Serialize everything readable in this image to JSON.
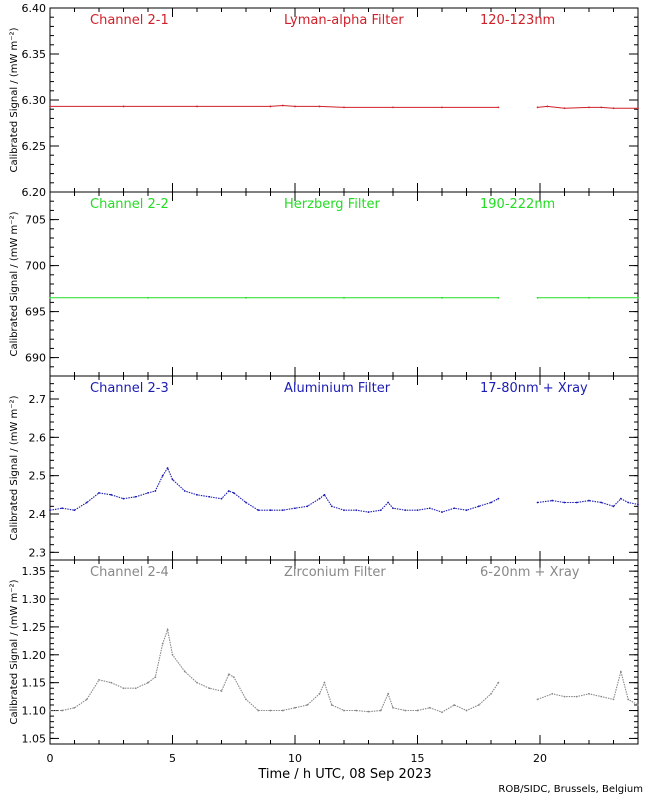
{
  "chart_data": {
    "type": "line",
    "xlabel": "Time / h UTC, 08 Sep 2023",
    "credit": "ROB/SIDC, Brussels, Belgium",
    "xlim": [
      0,
      24
    ],
    "xticks": [
      0,
      5,
      10,
      15,
      20
    ],
    "xtick_labels": [
      "0",
      "5",
      "10",
      "15",
      "20"
    ],
    "ylabel": "Calibrated Signal / (mW m⁻²)",
    "panels": [
      {
        "channel": "Channel 2-1",
        "filter": "Lyman-alpha Filter",
        "band": "120-123nm",
        "color": "#d0202a",
        "ylim": [
          6.2,
          6.4
        ],
        "yticks": [
          6.2,
          6.25,
          6.3,
          6.35,
          6.4
        ],
        "ytick_labels": [
          "6.20",
          "6.25",
          "6.30",
          "6.35",
          "6.40"
        ],
        "gap": [
          18.3,
          19.9
        ],
        "x": [
          0,
          3,
          6,
          9,
          9.5,
          10,
          11,
          12,
          14,
          16,
          18.3,
          19.9,
          20.3,
          21,
          22,
          22.5,
          23,
          24
        ],
        "y": [
          6.293,
          6.293,
          6.293,
          6.293,
          6.294,
          6.293,
          6.293,
          6.292,
          6.292,
          6.292,
          6.292,
          6.292,
          6.293,
          6.291,
          6.292,
          6.292,
          6.291,
          6.291
        ]
      },
      {
        "channel": "Channel 2-2",
        "filter": "Herzberg Filter",
        "band": "190-222nm",
        "color": "#22dd22",
        "ylim": [
          688,
          708
        ],
        "yticks": [
          690,
          695,
          700,
          705
        ],
        "ytick_labels": [
          "690",
          "695",
          "700",
          "705"
        ],
        "gap": [
          18.3,
          19.9
        ],
        "x": [
          0,
          4,
          8,
          12,
          16,
          18.3,
          19.9,
          22,
          24
        ],
        "y": [
          696.5,
          696.5,
          696.5,
          696.5,
          696.5,
          696.5,
          696.5,
          696.5,
          696.5
        ]
      },
      {
        "channel": "Channel 2-3",
        "filter": "Aluminium Filter",
        "band": "17-80nm + Xray",
        "color": "#1c1cb4",
        "ylim": [
          2.28,
          2.76
        ],
        "yticks": [
          2.3,
          2.4,
          2.5,
          2.6,
          2.7
        ],
        "ytick_labels": [
          "2.3",
          "2.4",
          "2.5",
          "2.6",
          "2.7"
        ],
        "gap": [
          18.3,
          19.9
        ],
        "x": [
          0,
          0.5,
          1,
          1.5,
          2,
          2.5,
          3,
          3.5,
          4,
          4.3,
          4.6,
          4.8,
          5,
          5.5,
          6,
          6.5,
          7,
          7.3,
          7.5,
          8,
          8.5,
          9,
          9.5,
          10,
          10.5,
          11,
          11.2,
          11.5,
          12,
          12.5,
          13,
          13.5,
          13.8,
          14,
          14.5,
          15,
          15.5,
          16,
          16.5,
          17,
          17.5,
          18,
          18.3,
          19.9,
          20.5,
          21,
          21.5,
          22,
          22.5,
          23,
          23.3,
          23.6,
          24
        ],
        "y": [
          2.41,
          2.415,
          2.41,
          2.43,
          2.455,
          2.45,
          2.44,
          2.445,
          2.455,
          2.46,
          2.5,
          2.52,
          2.49,
          2.46,
          2.45,
          2.445,
          2.44,
          2.46,
          2.455,
          2.43,
          2.41,
          2.41,
          2.41,
          2.415,
          2.42,
          2.44,
          2.45,
          2.42,
          2.41,
          2.41,
          2.405,
          2.41,
          2.43,
          2.415,
          2.41,
          2.41,
          2.415,
          2.405,
          2.415,
          2.41,
          2.42,
          2.43,
          2.44,
          2.43,
          2.435,
          2.43,
          2.43,
          2.435,
          2.43,
          2.42,
          2.44,
          2.43,
          2.425
        ]
      },
      {
        "channel": "Channel 2-4",
        "filter": "Zirconium Filter",
        "band": "6-20nm + Xray",
        "color": "#888888",
        "ylim": [
          1.04,
          1.37
        ],
        "yticks": [
          1.05,
          1.1,
          1.15,
          1.2,
          1.25,
          1.3,
          1.35
        ],
        "ytick_labels": [
          "1.05",
          "1.10",
          "1.15",
          "1.20",
          "1.25",
          "1.30",
          "1.35"
        ],
        "gap": [
          18.3,
          19.9
        ],
        "x": [
          0,
          0.5,
          1,
          1.5,
          2,
          2.5,
          3,
          3.5,
          4,
          4.3,
          4.6,
          4.8,
          5,
          5.5,
          6,
          6.5,
          7,
          7.3,
          7.5,
          8,
          8.5,
          9,
          9.5,
          10,
          10.5,
          11,
          11.2,
          11.5,
          12,
          12.5,
          13,
          13.5,
          13.8,
          14,
          14.5,
          15,
          15.5,
          16,
          16.5,
          17,
          17.5,
          18,
          18.3,
          19.9,
          20.5,
          21,
          21.5,
          22,
          22.5,
          23,
          23.3,
          23.6,
          24
        ],
        "y": [
          1.1,
          1.1,
          1.105,
          1.12,
          1.155,
          1.15,
          1.14,
          1.14,
          1.15,
          1.16,
          1.22,
          1.245,
          1.2,
          1.17,
          1.15,
          1.14,
          1.135,
          1.165,
          1.16,
          1.12,
          1.1,
          1.1,
          1.1,
          1.105,
          1.11,
          1.13,
          1.15,
          1.11,
          1.1,
          1.1,
          1.098,
          1.1,
          1.13,
          1.105,
          1.1,
          1.1,
          1.105,
          1.097,
          1.11,
          1.1,
          1.11,
          1.13,
          1.15,
          1.12,
          1.13,
          1.125,
          1.125,
          1.13,
          1.125,
          1.12,
          1.17,
          1.12,
          1.11
        ]
      }
    ]
  }
}
